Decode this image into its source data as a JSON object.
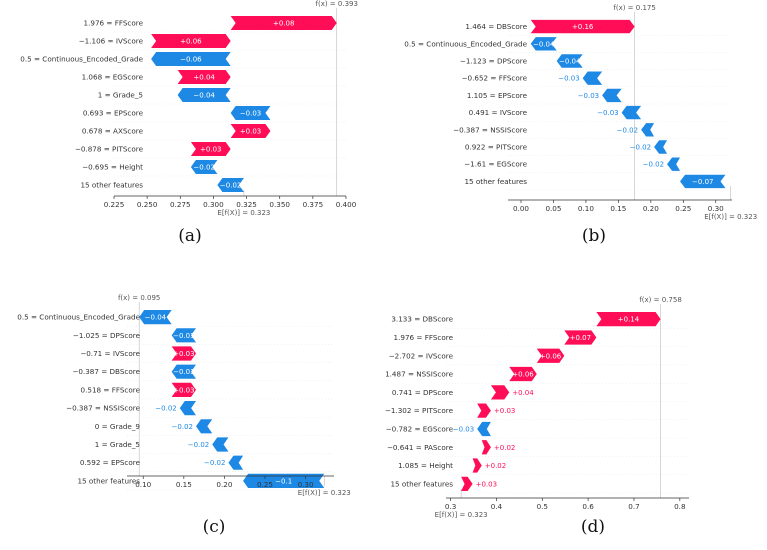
{
  "colors": {
    "positive": "#ff0d57",
    "negative": "#1e88e5",
    "axis": "#333333",
    "label": "#555555",
    "line": "#aaaaaa"
  },
  "chart_data": [
    {
      "id": "a",
      "type": "waterfall",
      "panel_label": "(a)",
      "fx_label": "f(x) = 0.393",
      "fx": 0.393,
      "base_label": "E[f(X)] = 0.323",
      "base": 0.323,
      "xlim": [
        0.225,
        0.4
      ],
      "xticks": [
        0.225,
        0.25,
        0.275,
        0.3,
        0.325,
        0.35,
        0.375,
        0.4
      ],
      "xtick_labels": [
        "0.225",
        "0.250",
        "0.275",
        "0.300",
        "0.325",
        "0.350",
        "0.375",
        "0.400"
      ],
      "rows": [
        {
          "label": "1.976 = FFScore",
          "start": 0.313,
          "end": 0.393,
          "contrib": "+0.08",
          "sign": "pos"
        },
        {
          "label": "−1.106 = IVScore",
          "start": 0.253,
          "end": 0.313,
          "contrib": "+0.06",
          "sign": "pos"
        },
        {
          "label": "0.5 = Continuous_Encoded_Grade",
          "start": 0.313,
          "end": 0.253,
          "contrib": "−0.06",
          "sign": "neg"
        },
        {
          "label": "1.068 = EGScore",
          "start": 0.273,
          "end": 0.313,
          "contrib": "+0.04",
          "sign": "pos"
        },
        {
          "label": "1 = Grade_5",
          "start": 0.313,
          "end": 0.273,
          "contrib": "−0.04",
          "sign": "neg"
        },
        {
          "label": "0.693 = EPScore",
          "start": 0.343,
          "end": 0.313,
          "contrib": "−0.03",
          "sign": "neg"
        },
        {
          "label": "0.678 = AXScore",
          "start": 0.313,
          "end": 0.343,
          "contrib": "+0.03",
          "sign": "pos"
        },
        {
          "label": "−0.878 = PITScore",
          "start": 0.283,
          "end": 0.313,
          "contrib": "+0.03",
          "sign": "pos"
        },
        {
          "label": "−0.695 = Height",
          "start": 0.303,
          "end": 0.283,
          "contrib": "−0.02",
          "sign": "neg"
        },
        {
          "label": "15 other features",
          "start": 0.323,
          "end": 0.303,
          "contrib": "−0.02",
          "sign": "neg"
        }
      ]
    },
    {
      "id": "b",
      "type": "waterfall",
      "panel_label": "(b)",
      "fx_label": "f(x) = 0.175",
      "fx": 0.175,
      "base_label": "E[f(X)] = 0.323",
      "base": 0.323,
      "xlim": [
        -0.02,
        0.325
      ],
      "xticks": [
        0.0,
        0.05,
        0.1,
        0.15,
        0.2,
        0.25,
        0.3
      ],
      "xtick_labels": [
        "0.00",
        "0.05",
        "0.10",
        "0.15",
        "0.20",
        "0.25",
        "0.30"
      ],
      "rows": [
        {
          "label": "1.464 = DBScore",
          "start": 0.015,
          "end": 0.175,
          "contrib": "+0.16",
          "sign": "pos"
        },
        {
          "label": "0.5 = Continuous_Encoded_Grade",
          "start": 0.055,
          "end": 0.015,
          "contrib": "−0.04",
          "sign": "neg"
        },
        {
          "label": "−1.123 = DPScore",
          "start": 0.095,
          "end": 0.055,
          "contrib": "−0.04",
          "sign": "neg"
        },
        {
          "label": "−0.652 = FFScore",
          "start": 0.125,
          "end": 0.095,
          "contrib": "−0.03",
          "sign": "neg"
        },
        {
          "label": "1.105 = EPScore",
          "start": 0.155,
          "end": 0.125,
          "contrib": "−0.03",
          "sign": "neg"
        },
        {
          "label": "0.491 = IVScore",
          "start": 0.185,
          "end": 0.155,
          "contrib": "−0.03",
          "sign": "neg"
        },
        {
          "label": "−0.387 = NSSIScore",
          "start": 0.205,
          "end": 0.185,
          "contrib": "−0.02",
          "sign": "neg"
        },
        {
          "label": "0.922 = PITScore",
          "start": 0.225,
          "end": 0.205,
          "contrib": "−0.02",
          "sign": "neg"
        },
        {
          "label": "−1.61 = EGScore",
          "start": 0.245,
          "end": 0.225,
          "contrib": "−0.02",
          "sign": "neg"
        },
        {
          "label": "15 other features",
          "start": 0.315,
          "end": 0.245,
          "contrib": "−0.07",
          "sign": "neg"
        }
      ]
    },
    {
      "id": "c",
      "type": "waterfall",
      "panel_label": "(c)",
      "fx_label": "f(x) = 0.095",
      "fx": 0.095,
      "base_label": "E[f(X)] = 0.323",
      "base": 0.323,
      "xlim": [
        0.08,
        0.335
      ],
      "xticks": [
        0.1,
        0.15,
        0.2,
        0.25,
        0.3
      ],
      "xtick_labels": [
        "0.10",
        "0.15",
        "0.20",
        "0.25",
        "0.30"
      ],
      "rows": [
        {
          "label": "0.5 = Continuous_Encoded_Grade",
          "start": 0.135,
          "end": 0.095,
          "contrib": "−0.04",
          "sign": "neg"
        },
        {
          "label": "−1.025 = DPScore",
          "start": 0.165,
          "end": 0.135,
          "contrib": "−0.03",
          "sign": "neg"
        },
        {
          "label": "−0.71 = IVScore",
          "start": 0.135,
          "end": 0.165,
          "contrib": "+0.03",
          "sign": "pos"
        },
        {
          "label": "−0.387 = DBScore",
          "start": 0.165,
          "end": 0.135,
          "contrib": "−0.03",
          "sign": "neg"
        },
        {
          "label": "0.518 = FFScore",
          "start": 0.135,
          "end": 0.165,
          "contrib": "+0.03",
          "sign": "pos"
        },
        {
          "label": "−0.387 = NSSIScore",
          "start": 0.165,
          "end": 0.145,
          "contrib": "−0.02",
          "sign": "neg"
        },
        {
          "label": "0 = Grade_9",
          "start": 0.185,
          "end": 0.165,
          "contrib": "−0.02",
          "sign": "neg"
        },
        {
          "label": "1 = Grade_5",
          "start": 0.205,
          "end": 0.185,
          "contrib": "−0.02",
          "sign": "neg"
        },
        {
          "label": "0.592 = EPScore",
          "start": 0.223,
          "end": 0.205,
          "contrib": "−0.02",
          "sign": "neg"
        },
        {
          "label": "15 other features",
          "start": 0.323,
          "end": 0.223,
          "contrib": "−0.1",
          "sign": "neg"
        }
      ]
    },
    {
      "id": "d",
      "type": "waterfall",
      "panel_label": "(d)",
      "fx_label": "f(x) = 0.758",
      "fx": 0.758,
      "base_label": "E[f(X)] = 0.323",
      "base": 0.323,
      "xlim": [
        0.29,
        0.82
      ],
      "xticks": [
        0.3,
        0.4,
        0.5,
        0.6,
        0.7,
        0.8
      ],
      "xtick_labels": [
        "0.3",
        "0.4",
        "0.5",
        "0.6",
        "0.7",
        "0.8"
      ],
      "rows": [
        {
          "label": "3.133 = DBScore",
          "start": 0.618,
          "end": 0.758,
          "contrib": "+0.14",
          "sign": "pos"
        },
        {
          "label": "1.976 = FFScore",
          "start": 0.548,
          "end": 0.618,
          "contrib": "+0.07",
          "sign": "pos"
        },
        {
          "label": "−2.702 = IVScore",
          "start": 0.488,
          "end": 0.548,
          "contrib": "+0.06",
          "sign": "pos"
        },
        {
          "label": "1.487 = NSSIScore",
          "start": 0.428,
          "end": 0.488,
          "contrib": "+0.06",
          "sign": "pos"
        },
        {
          "label": "0.741 = DPScore",
          "start": 0.388,
          "end": 0.428,
          "contrib": "+0.04",
          "sign": "pos"
        },
        {
          "label": "−1.302 = PITScore",
          "start": 0.358,
          "end": 0.388,
          "contrib": "+0.03",
          "sign": "pos"
        },
        {
          "label": "−0.782 = EGScore",
          "start": 0.388,
          "end": 0.358,
          "contrib": "−0.03",
          "sign": "neg"
        },
        {
          "label": "−0.641 = PAScore",
          "start": 0.368,
          "end": 0.388,
          "contrib": "+0.02",
          "sign": "pos"
        },
        {
          "label": "1.085 = Height",
          "start": 0.348,
          "end": 0.368,
          "contrib": "+0.02",
          "sign": "pos"
        },
        {
          "label": "15 other features",
          "start": 0.323,
          "end": 0.348,
          "contrib": "+0.03",
          "sign": "pos"
        }
      ]
    }
  ]
}
